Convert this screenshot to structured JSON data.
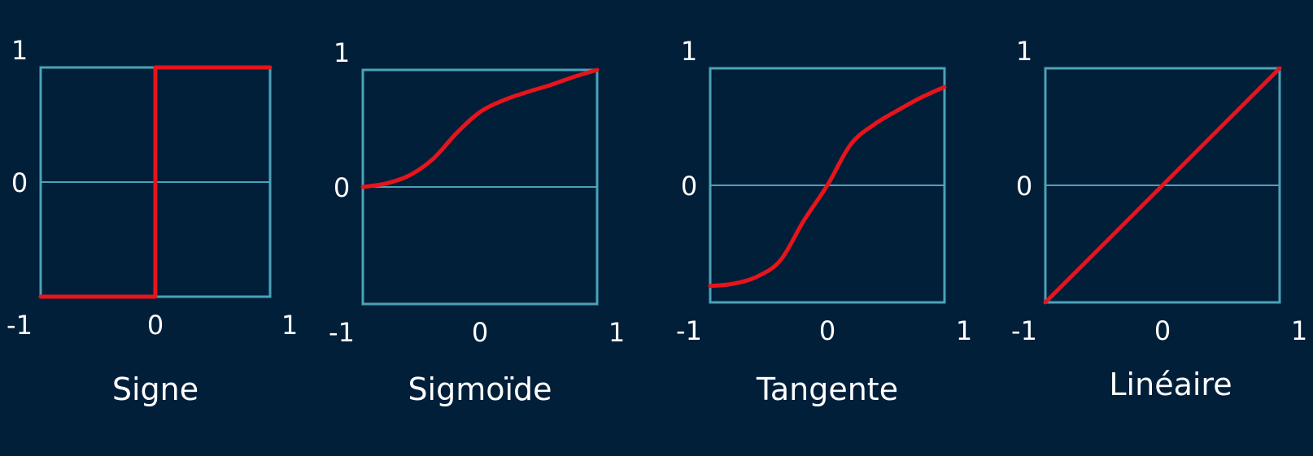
{
  "colors": {
    "background": "#021f3a",
    "frame": "#4aa3b8",
    "curve": "#e8141b",
    "text": "#ffffff"
  },
  "chart_data": [
    {
      "type": "line",
      "title": "Signe",
      "xlim": [
        -1,
        1
      ],
      "ylim": [
        -1,
        1
      ],
      "x_ticks": [
        "-1",
        "0",
        "1"
      ],
      "y_ticks": [
        "1",
        "0"
      ],
      "grid": "horizontal line at y=0",
      "x": [
        -1,
        -0.001,
        0,
        1
      ],
      "y": [
        -1,
        -1,
        1,
        1
      ]
    },
    {
      "type": "line",
      "title": "Sigmoïde",
      "xlim": [
        -1,
        1
      ],
      "ylim": [
        -1,
        1
      ],
      "x_ticks": [
        "-1",
        "0",
        "1"
      ],
      "y_ticks": [
        "1",
        "0"
      ],
      "grid": "horizontal line at y=0",
      "x": [
        -1,
        -0.8,
        -0.6,
        -0.4,
        -0.2,
        0,
        0.2,
        0.4,
        0.6,
        0.8,
        1
      ],
      "y": [
        0,
        0.03,
        0.1,
        0.24,
        0.46,
        0.64,
        0.74,
        0.81,
        0.87,
        0.94,
        1
      ]
    },
    {
      "type": "line",
      "title": "Tangente",
      "xlim": [
        -1,
        1
      ],
      "ylim": [
        -1,
        1
      ],
      "x_ticks": [
        "-1",
        "0",
        "1"
      ],
      "y_ticks": [
        "1",
        "0"
      ],
      "grid": "horizontal line at y=0",
      "x": [
        -1,
        -0.8,
        -0.6,
        -0.4,
        -0.2,
        0,
        0.2,
        0.4,
        0.6,
        0.8,
        1
      ],
      "y": [
        -0.86,
        -0.84,
        -0.78,
        -0.64,
        -0.3,
        0,
        0.35,
        0.52,
        0.64,
        0.75,
        0.84
      ]
    },
    {
      "type": "line",
      "title": "Linéaire",
      "xlim": [
        -1,
        1
      ],
      "ylim": [
        -1,
        1
      ],
      "x_ticks": [
        "-1",
        "0",
        "1"
      ],
      "y_ticks": [
        "1",
        "0"
      ],
      "grid": "horizontal line at y=0",
      "x": [
        -1,
        1
      ],
      "y": [
        -1,
        1
      ]
    }
  ]
}
